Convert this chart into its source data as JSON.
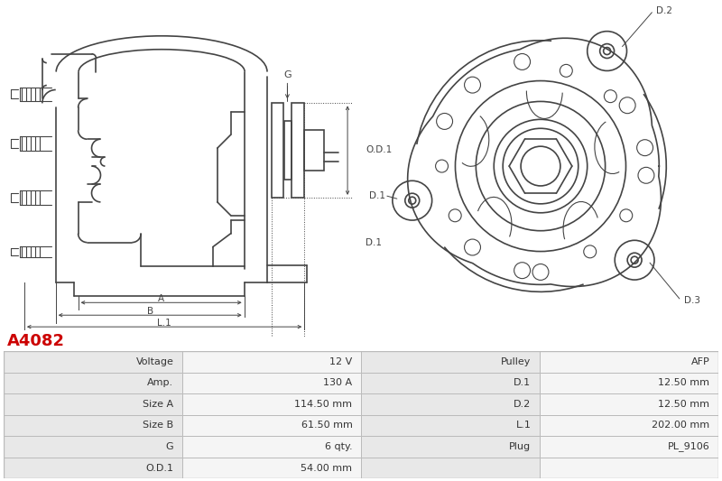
{
  "title": "A4082",
  "title_color": "#cc0000",
  "bg_color": "#ffffff",
  "table_data": [
    [
      "Voltage",
      "12 V",
      "Pulley",
      "AFP"
    ],
    [
      "Amp.",
      "130 A",
      "D.1",
      "12.50 mm"
    ],
    [
      "Size A",
      "114.50 mm",
      "D.2",
      "12.50 mm"
    ],
    [
      "Size B",
      "61.50 mm",
      "L.1",
      "202.00 mm"
    ],
    [
      "G",
      "6 qty.",
      "Plug",
      "PL_9106"
    ],
    [
      "O.D.1",
      "54.00 mm",
      "",
      ""
    ]
  ],
  "table_header_bg": "#e8e8e8",
  "table_row_bg": "#f5f5f5",
  "table_border_color": "#bbbbbb",
  "line_color": "#444444",
  "label_color": "#444444",
  "dim_line_color": "#555555"
}
